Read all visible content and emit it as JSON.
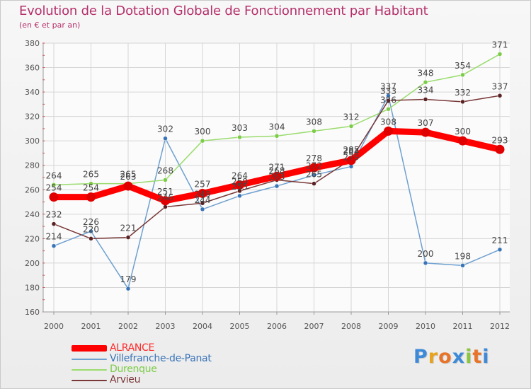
{
  "header": {
    "title": "Evolution de la Dotation Globale de Fonctionnement par Habitant",
    "subtitle": "(en € et par an)"
  },
  "logo": {
    "letters": [
      "P",
      "r",
      "o",
      "x",
      "i",
      "t",
      "i"
    ],
    "colors": [
      "#3c8ad8",
      "#e8a21c",
      "#e8742a",
      "#3c8ad8",
      "#8cc63f",
      "#e8742a",
      "#3c8ad8"
    ]
  },
  "chart_data": {
    "type": "line",
    "title": "Evolution de la Dotation Globale de Fonctionnement par Habitant",
    "ylabel": "(en € et par an)",
    "xlabel": "",
    "ylim": [
      160,
      380
    ],
    "yticks": [
      160,
      180,
      200,
      220,
      240,
      260,
      280,
      300,
      320,
      340,
      360,
      380
    ],
    "categories": [
      "2000",
      "2001",
      "2002",
      "2003",
      "2004",
      "2005",
      "2006",
      "2007",
      "2008",
      "2009",
      "2010",
      "2011",
      "2012"
    ],
    "grid": true,
    "series": [
      {
        "name": "Villefranche-de-Panat",
        "color": "#6ea0d0",
        "marker": "#3a74b8",
        "values": [
          214,
          226,
          179,
          302,
          244,
          255,
          263,
          272,
          279,
          337,
          200,
          198,
          211
        ]
      },
      {
        "name": "Durenque",
        "color": "#9adc6e",
        "marker": "#7ccc48",
        "values": [
          264,
          265,
          265,
          268,
          300,
          303,
          304,
          308,
          312,
          326,
          348,
          354,
          371
        ]
      },
      {
        "name": "Arvieu",
        "color": "#7a3838",
        "marker": "#5a2222",
        "values": [
          232,
          220,
          221,
          246,
          249,
          259,
          268,
          265,
          285,
          333,
          334,
          332,
          337
        ]
      },
      {
        "name": "ALRANCE",
        "color": "#ff0000",
        "marker": "#e00000",
        "values": [
          254,
          254,
          263,
          251,
          257,
          264,
          271,
          278,
          284,
          308,
          307,
          300,
          293
        ]
      }
    ],
    "legend": [
      "ALRANCE",
      "Villefranche-de-Panat",
      "Durenque",
      "Arvieu"
    ],
    "legend_position": "bottom-left"
  }
}
